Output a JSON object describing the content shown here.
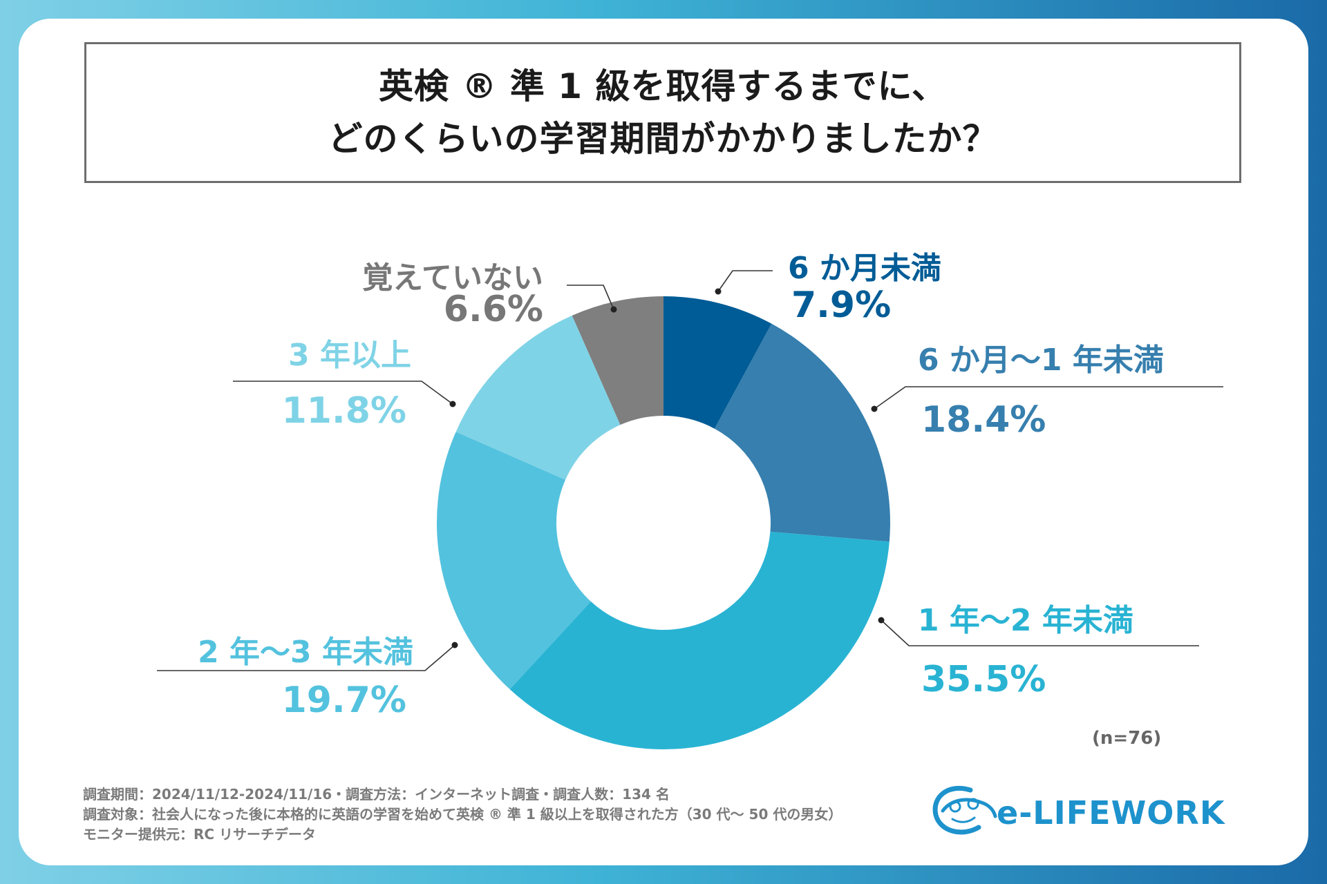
{
  "title": {
    "line1": "英検 ® 準 1 級を取得するまでに、",
    "line2": "どのくらいの学習期間がかかりましたか？"
  },
  "chart_data": {
    "type": "pie",
    "donut": true,
    "categories": [
      "6 か月未満",
      "6 か月～1 年未満",
      "1 年～2 年未満",
      "2 年～3 年未満",
      "3 年以上",
      "覚えていない"
    ],
    "values": [
      7.9,
      18.4,
      35.5,
      19.7,
      11.8,
      6.6
    ],
    "value_labels": [
      "7.9%",
      "18.4%",
      "35.5%",
      "19.7%",
      "11.8%",
      "6.6%"
    ],
    "colors": [
      "#005c96",
      "#367fae",
      "#29b3d3",
      "#53c2de",
      "#7fd3e6",
      "#7f7f7f"
    ],
    "sample_size": "(n=76)"
  },
  "footer": {
    "line1": "調査期間：2024/11/12-2024/11/16・調査方法：インターネット調査・調査人数：134 名",
    "line2": "調査対象：社会人になった後に本格的に英語の学習を始めて英検 ® 準 1 級以上を取得された方（30 代～ 50 代の男女）",
    "line3": "モニター提供元：RC リサーチデータ"
  },
  "logo": {
    "text": "e-LIFEWORK",
    "color": "#1d92cc"
  }
}
